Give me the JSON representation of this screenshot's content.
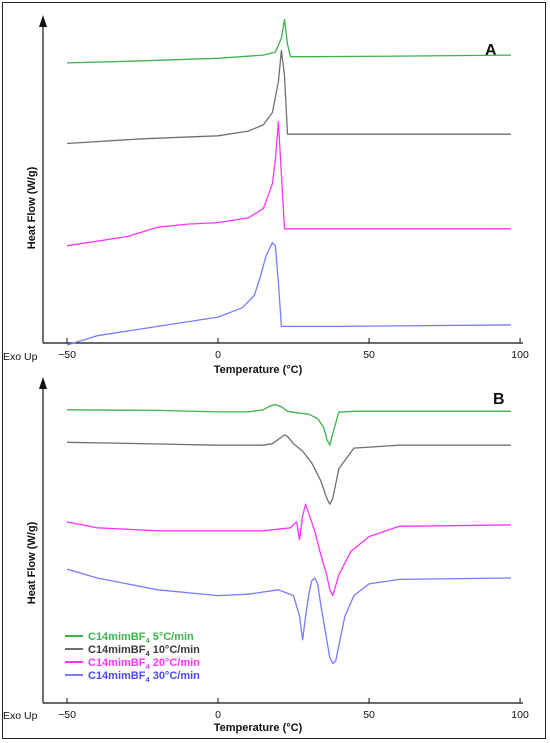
{
  "chart_data": [
    {
      "type": "line",
      "panel_label": "A",
      "xlabel": "Temperature (°C)",
      "ylabel": "Heat Flow (W/g)",
      "corner_label": "Exo Up",
      "xlim": [
        -53,
        100
      ],
      "xticks": [
        -50,
        0,
        50,
        100
      ],
      "series": [
        {
          "color": "#3cb44b",
          "x": [
            -50,
            -30,
            0,
            15,
            19,
            21,
            22,
            23,
            24,
            30,
            60,
            97
          ],
          "y": [
            0.91,
            0.915,
            0.925,
            0.935,
            0.945,
            0.99,
            1.05,
            0.97,
            0.93,
            0.93,
            0.932,
            0.935
          ]
        },
        {
          "color": "#707070",
          "x": [
            -50,
            -25,
            0,
            10,
            15,
            18,
            20,
            21,
            22,
            23,
            30,
            60,
            97
          ],
          "y": [
            0.65,
            0.665,
            0.675,
            0.69,
            0.71,
            0.75,
            0.85,
            0.95,
            0.87,
            0.68,
            0.68,
            0.68,
            0.68
          ]
        },
        {
          "color": "#ff33ff",
          "x": [
            -50,
            -30,
            -20,
            -10,
            0,
            10,
            15,
            18,
            19,
            20,
            21,
            22,
            40,
            97
          ],
          "y": [
            0.32,
            0.35,
            0.38,
            0.39,
            0.395,
            0.41,
            0.44,
            0.52,
            0.6,
            0.72,
            0.55,
            0.375,
            0.375,
            0.375
          ]
        },
        {
          "color": "#7a7aff",
          "x": [
            -50,
            -40,
            -20,
            0,
            8,
            12,
            14,
            16,
            18,
            19,
            20,
            21,
            40,
            97
          ],
          "y": [
            0,
            0.03,
            0.06,
            0.09,
            0.12,
            0.16,
            0.22,
            0.29,
            0.33,
            0.32,
            0.2,
            0.06,
            0.06,
            0.065
          ]
        }
      ]
    },
    {
      "type": "line",
      "panel_label": "B",
      "xlabel": "Temperature (°C)",
      "ylabel": "Heat Flow (W/g)",
      "corner_label": "Exo Up",
      "xlim": [
        -53,
        100
      ],
      "xticks": [
        -50,
        0,
        50,
        100
      ],
      "series": [
        {
          "name": "C14mimBF4 5°C/min",
          "color": "#3cb44b",
          "x": [
            -50,
            -20,
            0,
            10,
            15,
            17,
            19,
            21,
            23,
            26,
            30,
            33,
            35,
            36,
            37,
            38,
            40,
            45,
            97
          ],
          "y": [
            0.96,
            0.958,
            0.953,
            0.953,
            0.96,
            0.972,
            0.978,
            0.97,
            0.955,
            0.95,
            0.945,
            0.93,
            0.9,
            0.86,
            0.84,
            0.88,
            0.952,
            0.955,
            0.955
          ]
        },
        {
          "name": "C14mimBF4 10°C/min",
          "color": "#707070",
          "x": [
            -50,
            -30,
            0,
            15,
            18,
            20,
            22,
            23,
            25,
            28,
            31,
            34,
            36,
            37,
            38,
            40,
            45,
            60,
            97
          ],
          "y": [
            0.85,
            0.846,
            0.84,
            0.84,
            0.845,
            0.86,
            0.875,
            0.87,
            0.845,
            0.82,
            0.78,
            0.72,
            0.66,
            0.64,
            0.66,
            0.76,
            0.83,
            0.84,
            0.84
          ]
        },
        {
          "name": "C14mimBF4 20°C/min",
          "color": "#ff33ff",
          "x": [
            -50,
            -40,
            -20,
            0,
            15,
            24,
            26,
            27,
            28,
            29,
            30,
            32,
            34,
            36,
            37,
            38,
            40,
            44,
            50,
            60,
            97
          ],
          "y": [
            0.58,
            0.56,
            0.55,
            0.55,
            0.55,
            0.56,
            0.58,
            0.52,
            0.6,
            0.64,
            0.61,
            0.55,
            0.47,
            0.4,
            0.35,
            0.33,
            0.4,
            0.48,
            0.53,
            0.565,
            0.57
          ]
        },
        {
          "name": "C14mimBF4 30°C/min",
          "color": "#7a7aff",
          "x": [
            -50,
            -40,
            -20,
            0,
            10,
            20,
            25,
            27,
            28,
            29,
            30,
            31,
            32,
            33,
            34,
            36,
            37,
            38,
            39,
            40,
            42,
            45,
            50,
            60,
            97
          ],
          "y": [
            0.42,
            0.39,
            0.35,
            0.33,
            0.335,
            0.35,
            0.33,
            0.26,
            0.18,
            0.26,
            0.33,
            0.38,
            0.39,
            0.37,
            0.3,
            0.18,
            0.12,
            0.1,
            0.11,
            0.16,
            0.26,
            0.33,
            0.37,
            0.385,
            0.39
          ]
        }
      ],
      "legend": {
        "position": "bottom-left",
        "entries": [
          {
            "label_main": "C14mimBF",
            "label_sub": "4",
            "label_rest": " 5°C/min",
            "color": "#3cb44b",
            "text_color": "#3cb44b"
          },
          {
            "label_main": "C14mimBF",
            "label_sub": "4",
            "label_rest": " 10°C/min",
            "color": "#707070",
            "text_color": "#3a3a3a"
          },
          {
            "label_main": "C14mimBF",
            "label_sub": "4",
            "label_rest": " 20°C/min",
            "color": "#ff33ff",
            "text_color": "#ff33ff"
          },
          {
            "label_main": "C14mimBF",
            "label_sub": "4",
            "label_rest": " 30°C/min",
            "color": "#7a7aff",
            "text_color": "#4a4af0"
          }
        ]
      }
    }
  ]
}
